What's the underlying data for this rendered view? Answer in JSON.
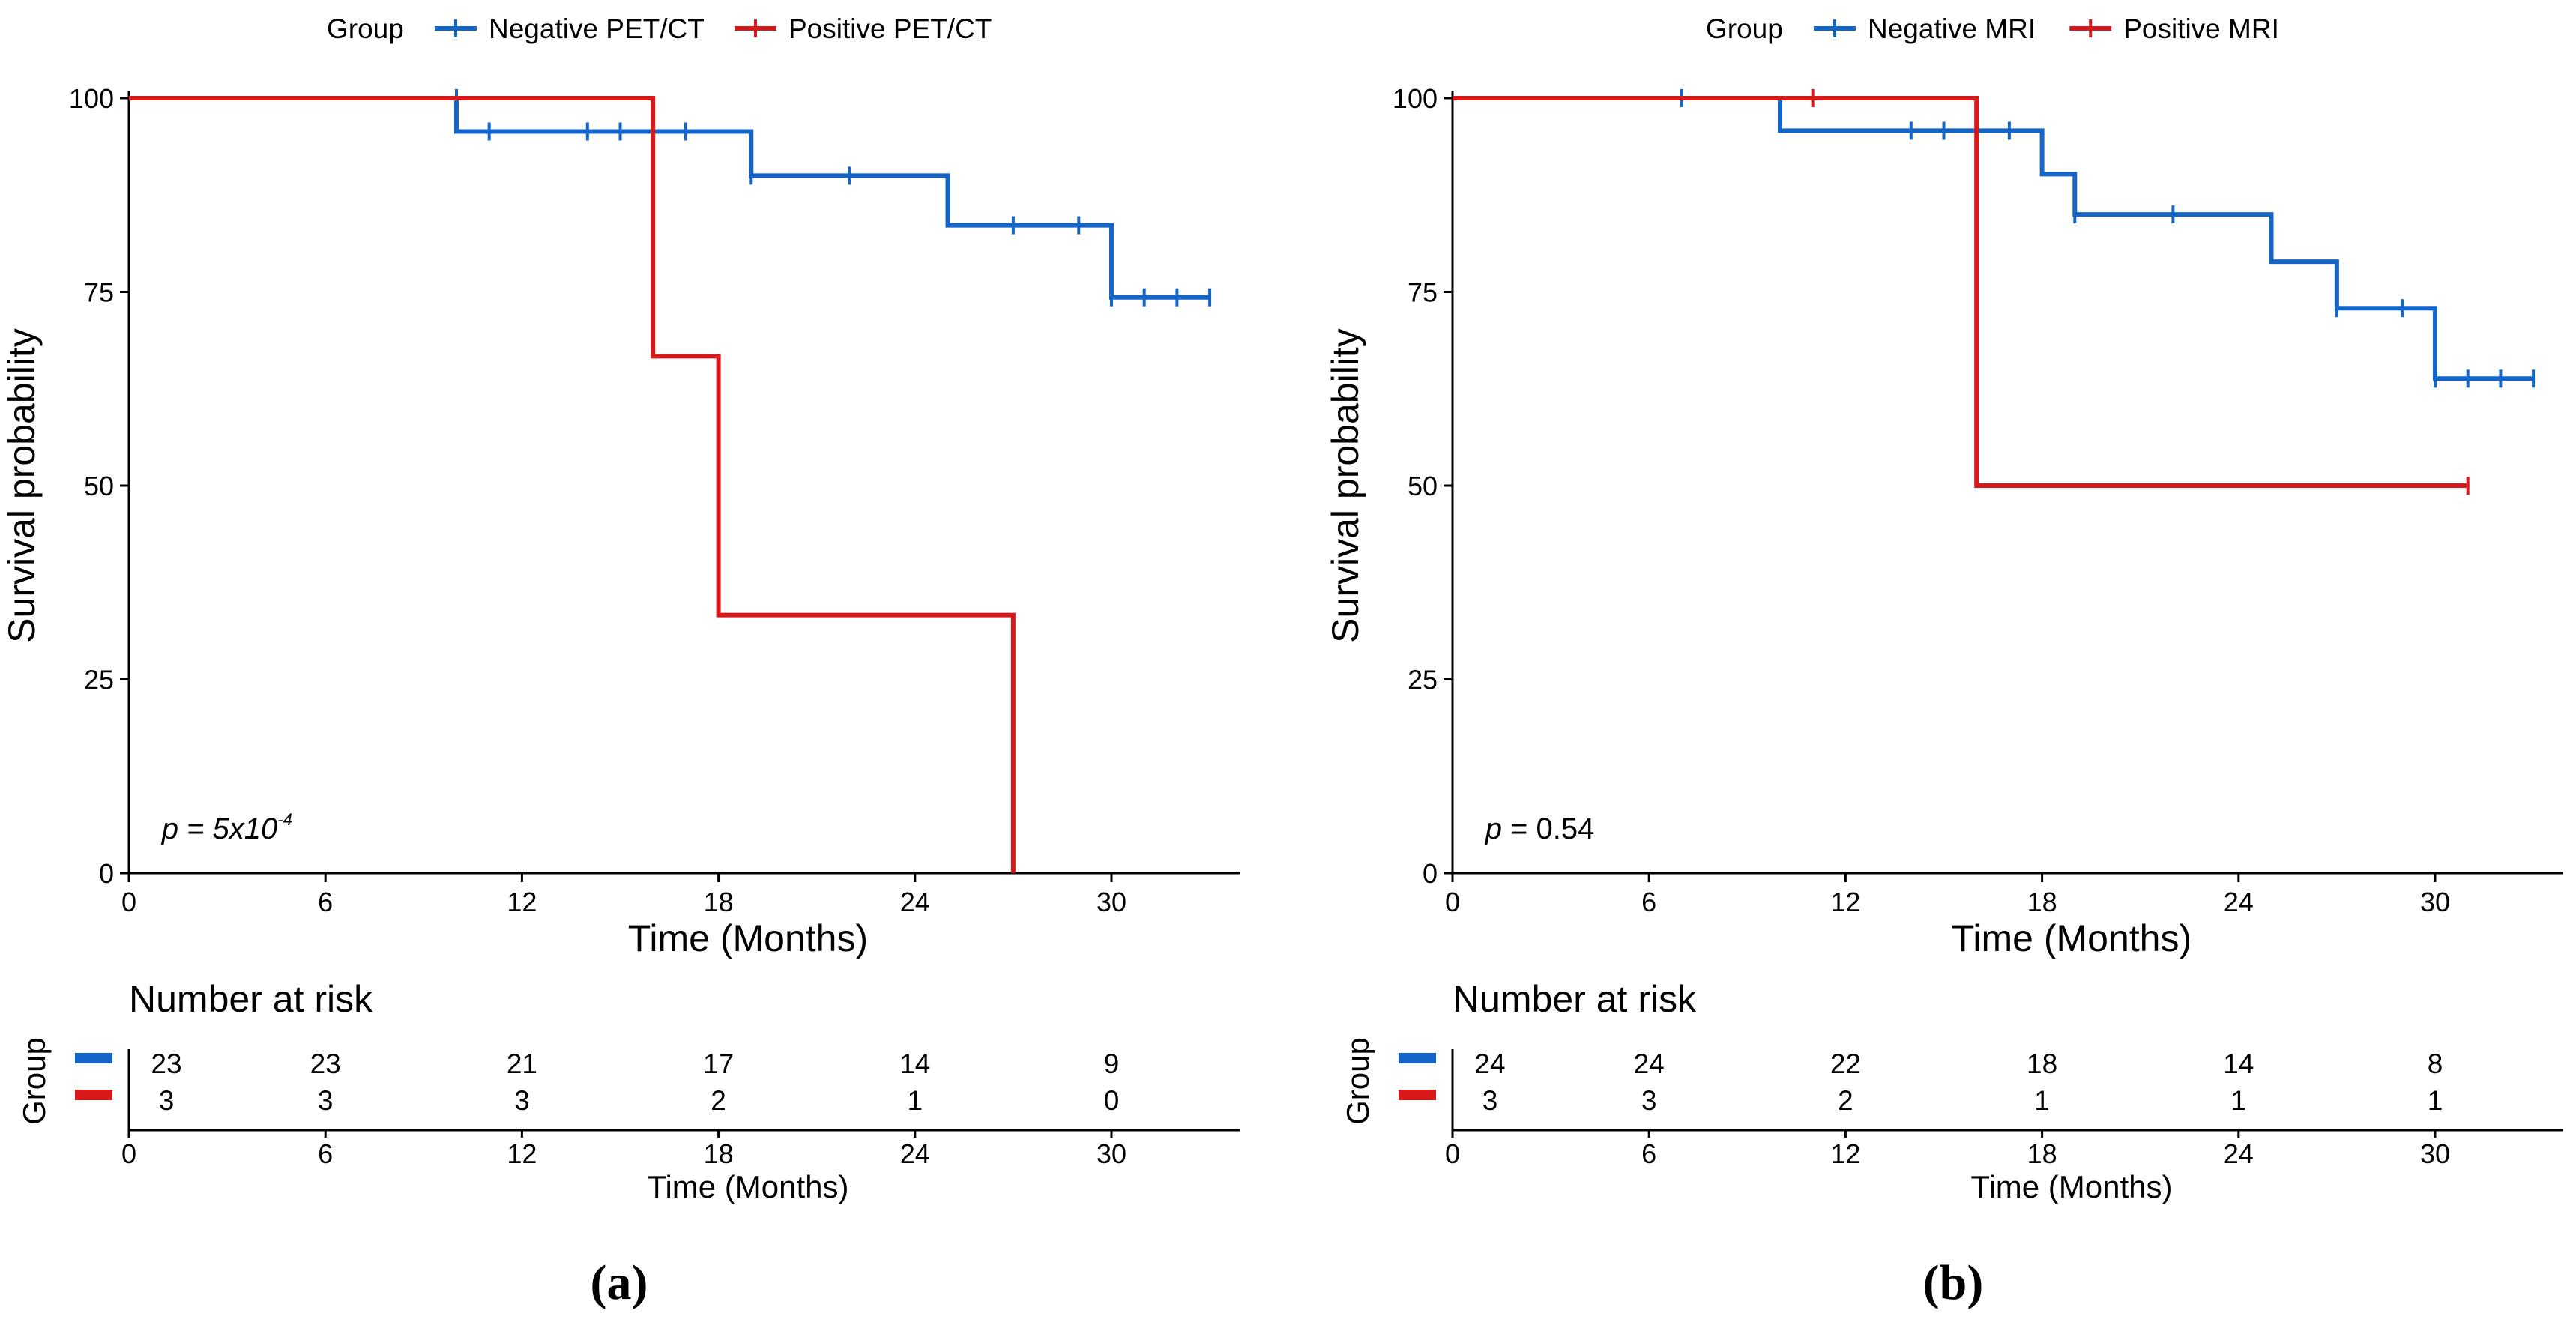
{
  "colors": {
    "negative": "#1565c8",
    "positive": "#d7191c",
    "axis": "#000000"
  },
  "chart_data": [
    {
      "type": "line",
      "subtype": "kaplan-meier",
      "panel_label": "(a)",
      "legend": {
        "title": "Group",
        "placement": "top",
        "entries": [
          "Negative PET/CT",
          "Positive PET/CT"
        ]
      },
      "xlabel": "Time (Months)",
      "ylabel": "Survival probability",
      "xlim": [
        0,
        34
      ],
      "ylim": [
        0,
        100
      ],
      "x_ticks": [
        "0",
        "6",
        "12",
        "18",
        "24",
        "30"
      ],
      "y_ticks": [
        "0",
        "25",
        "50",
        "75",
        "100"
      ],
      "p_value": {
        "prefix": "p",
        "text": "= 5x10",
        "exponent": "-4",
        "italic": true
      },
      "series": [
        {
          "name": "Negative PET/CT",
          "color_key": "negative",
          "steps": [
            [
              0,
              100
            ],
            [
              10,
              95.7
            ],
            [
              19,
              90.0
            ],
            [
              25,
              83.6
            ],
            [
              30,
              74.3
            ],
            [
              33,
              74.3
            ]
          ],
          "censored": [
            [
              10,
              100
            ],
            [
              11,
              95.7
            ],
            [
              14,
              95.7
            ],
            [
              15,
              95.7
            ],
            [
              17,
              95.7
            ],
            [
              19,
              90.0
            ],
            [
              22,
              90.0
            ],
            [
              27,
              83.6
            ],
            [
              29,
              83.6
            ],
            [
              30,
              74.3
            ],
            [
              31,
              74.3
            ],
            [
              32,
              74.3
            ],
            [
              33,
              74.3
            ]
          ]
        },
        {
          "name": "Positive PET/CT",
          "color_key": "positive",
          "steps": [
            [
              0,
              100
            ],
            [
              16,
              66.7
            ],
            [
              18,
              33.3
            ],
            [
              27,
              0
            ],
            [
              27,
              0
            ]
          ],
          "censored": []
        }
      ],
      "risk_table": {
        "title": "Number at risk",
        "ylabel": "Group",
        "xlabel": "Time (Months)",
        "times": [
          0,
          6,
          12,
          18,
          24,
          30
        ],
        "rows": [
          {
            "color_key": "negative",
            "values": [
              "23",
              "23",
              "21",
              "17",
              "14",
              "9"
            ]
          },
          {
            "color_key": "positive",
            "values": [
              "3",
              "3",
              "3",
              "2",
              "1",
              "0"
            ]
          }
        ]
      }
    },
    {
      "type": "line",
      "subtype": "kaplan-meier",
      "panel_label": "(b)",
      "legend": {
        "title": "Group",
        "placement": "top",
        "entries": [
          "Negative MRI",
          "Positive MRI"
        ]
      },
      "xlabel": "Time (Months)",
      "ylabel": "Survival probability",
      "xlim": [
        0,
        34
      ],
      "ylim": [
        0,
        100
      ],
      "x_ticks": [
        "0",
        "6",
        "12",
        "18",
        "24",
        "30"
      ],
      "y_ticks": [
        "0",
        "25",
        "50",
        "75",
        "100"
      ],
      "p_value": {
        "prefix": "p",
        "text": "= 0.54",
        "exponent": "",
        "italic": false
      },
      "series": [
        {
          "name": "Negative MRI",
          "color_key": "negative",
          "steps": [
            [
              0,
              100
            ],
            [
              10,
              95.8
            ],
            [
              18,
              90.2
            ],
            [
              19,
              85.0
            ],
            [
              25,
              78.9
            ],
            [
              27,
              72.9
            ],
            [
              30,
              63.8
            ],
            [
              33,
              63.8
            ]
          ],
          "censored": [
            [
              7,
              100
            ],
            [
              14,
              95.8
            ],
            [
              15,
              95.8
            ],
            [
              17,
              95.8
            ],
            [
              19,
              85.0
            ],
            [
              22,
              85.0
            ],
            [
              27,
              72.9
            ],
            [
              29,
              72.9
            ],
            [
              30,
              63.8
            ],
            [
              31,
              63.8
            ],
            [
              32,
              63.8
            ],
            [
              33,
              63.8
            ]
          ]
        },
        {
          "name": "Positive MRI",
          "color_key": "positive",
          "steps": [
            [
              0,
              100
            ],
            [
              16,
              50.0
            ],
            [
              31,
              50.0
            ]
          ],
          "censored": [
            [
              11,
              100
            ],
            [
              31,
              50.0
            ]
          ]
        }
      ],
      "risk_table": {
        "title": "Number at risk",
        "ylabel": "Group",
        "xlabel": "Time (Months)",
        "times": [
          0,
          6,
          12,
          18,
          24,
          30
        ],
        "rows": [
          {
            "color_key": "negative",
            "values": [
              "24",
              "24",
              "22",
              "18",
              "14",
              "8"
            ]
          },
          {
            "color_key": "positive",
            "values": [
              "3",
              "3",
              "2",
              "1",
              "1",
              "1"
            ]
          }
        ]
      }
    }
  ]
}
